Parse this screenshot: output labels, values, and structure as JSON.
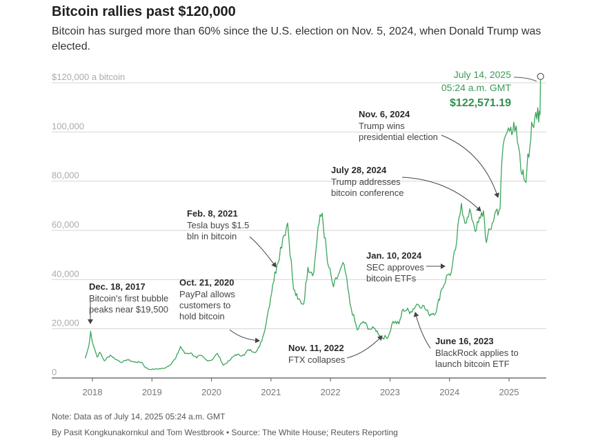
{
  "header": {
    "title": "Bitcoin rallies past $120,000",
    "subtitle": "Bitcoin has surged more than 60% since the U.S. election on Nov. 5, 2024, when Donald Trump was elected."
  },
  "footer": {
    "note": "Note: Data as of July 14, 2025 05:24 a.m. GMT",
    "source": "By Pasit Kongkunakornkul and Tom Westbrook • Source: The White House; Reuters Reporting"
  },
  "colors": {
    "line": "#3aa45b",
    "grid": "#d6d6d6",
    "axis": "#555555",
    "accent": "#2f8f4e"
  },
  "chart_data": {
    "type": "line",
    "title": "Bitcoin rallies past $120,000",
    "ylabel": "$ a bitcoin",
    "ylim": [
      0,
      120000
    ],
    "xlim": [
      2017.75,
      2025.67
    ],
    "y_ticks": [
      {
        "value": 0,
        "label": "0"
      },
      {
        "value": 20000,
        "label": "20,000"
      },
      {
        "value": 40000,
        "label": "40,000"
      },
      {
        "value": 60000,
        "label": "60,000"
      },
      {
        "value": 80000,
        "label": "80,000"
      },
      {
        "value": 100000,
        "label": "100,000"
      },
      {
        "value": 120000,
        "label": "$120,000 a bitcoin"
      }
    ],
    "x_ticks": [
      {
        "value": 2018,
        "label": "2018"
      },
      {
        "value": 2019,
        "label": "2019"
      },
      {
        "value": 2020,
        "label": "2020"
      },
      {
        "value": 2021,
        "label": "2021"
      },
      {
        "value": 2022,
        "label": "2022"
      },
      {
        "value": 2023,
        "label": "2023"
      },
      {
        "value": 2024,
        "label": "2024"
      },
      {
        "value": 2025,
        "label": "2025"
      }
    ],
    "series": [
      {
        "name": "Bitcoin price (USD)",
        "points": [
          [
            2017.88,
            8000
          ],
          [
            2017.94,
            13000
          ],
          [
            2017.97,
            19000
          ],
          [
            2018.0,
            14500
          ],
          [
            2018.04,
            11500
          ],
          [
            2018.08,
            8500
          ],
          [
            2018.12,
            10500
          ],
          [
            2018.2,
            7000
          ],
          [
            2018.3,
            9300
          ],
          [
            2018.4,
            7500
          ],
          [
            2018.5,
            6300
          ],
          [
            2018.58,
            7500
          ],
          [
            2018.7,
            6500
          ],
          [
            2018.83,
            6400
          ],
          [
            2018.88,
            4500
          ],
          [
            2018.95,
            3500
          ],
          [
            2019.05,
            3600
          ],
          [
            2019.2,
            3900
          ],
          [
            2019.3,
            5200
          ],
          [
            2019.4,
            8000
          ],
          [
            2019.48,
            12800
          ],
          [
            2019.55,
            10000
          ],
          [
            2019.65,
            10200
          ],
          [
            2019.75,
            8200
          ],
          [
            2019.82,
            9200
          ],
          [
            2019.92,
            7200
          ],
          [
            2020.0,
            7200
          ],
          [
            2020.1,
            10000
          ],
          [
            2020.2,
            5200
          ],
          [
            2020.3,
            7000
          ],
          [
            2020.4,
            9500
          ],
          [
            2020.55,
            9200
          ],
          [
            2020.62,
            11500
          ],
          [
            2020.75,
            10600
          ],
          [
            2020.81,
            12800
          ],
          [
            2020.88,
            18000
          ],
          [
            2020.96,
            28000
          ],
          [
            2021.03,
            38000
          ],
          [
            2021.1,
            46000
          ],
          [
            2021.2,
            57000
          ],
          [
            2021.28,
            63000
          ],
          [
            2021.38,
            36000
          ],
          [
            2021.45,
            32000
          ],
          [
            2021.55,
            30000
          ],
          [
            2021.62,
            45000
          ],
          [
            2021.72,
            43000
          ],
          [
            2021.79,
            61000
          ],
          [
            2021.86,
            67000
          ],
          [
            2021.95,
            47000
          ],
          [
            2022.05,
            37000
          ],
          [
            2022.15,
            43000
          ],
          [
            2022.23,
            46000
          ],
          [
            2022.33,
            30000
          ],
          [
            2022.45,
            19500
          ],
          [
            2022.55,
            23000
          ],
          [
            2022.65,
            20000
          ],
          [
            2022.75,
            20000
          ],
          [
            2022.86,
            16500
          ],
          [
            2022.97,
            16700
          ],
          [
            2023.05,
            23000
          ],
          [
            2023.15,
            22000
          ],
          [
            2023.22,
            28000
          ],
          [
            2023.35,
            27000
          ],
          [
            2023.45,
            30000
          ],
          [
            2023.55,
            29500
          ],
          [
            2023.65,
            26000
          ],
          [
            2023.78,
            27000
          ],
          [
            2023.85,
            35000
          ],
          [
            2023.97,
            42000
          ],
          [
            2024.03,
            43000
          ],
          [
            2024.1,
            52000
          ],
          [
            2024.2,
            71000
          ],
          [
            2024.28,
            63000
          ],
          [
            2024.36,
            67000
          ],
          [
            2024.45,
            60000
          ],
          [
            2024.52,
            65000
          ],
          [
            2024.57,
            68000
          ],
          [
            2024.62,
            55000
          ],
          [
            2024.72,
            63000
          ],
          [
            2024.78,
            68000
          ],
          [
            2024.85,
            69000
          ],
          [
            2024.88,
            88000
          ],
          [
            2024.92,
            97000
          ],
          [
            2024.97,
            100000
          ],
          [
            2025.03,
            102000
          ],
          [
            2025.08,
            104000
          ],
          [
            2025.14,
            96000
          ],
          [
            2025.2,
            84000
          ],
          [
            2025.27,
            80000
          ],
          [
            2025.3,
            85000
          ],
          [
            2025.35,
            94000
          ],
          [
            2025.38,
            104000
          ],
          [
            2025.45,
            108000
          ],
          [
            2025.5,
            104000
          ],
          [
            2025.52,
            107000
          ],
          [
            2025.5301,
            122571.19
          ]
        ]
      }
    ],
    "peak": {
      "x": 2025.5301,
      "y": 122571.19,
      "date_label": "July 14, 2025",
      "time_label": "05:24 a.m. GMT",
      "value_label": "$122,571.19"
    },
    "annotations": [
      {
        "x": 2017.96,
        "y": 19500,
        "date": "Dec. 18, 2017",
        "lines": [
          "Bitcoin's first bubble",
          "peaks near $19,500"
        ]
      },
      {
        "x": 2020.81,
        "y": 13000,
        "date": "Oct. 21, 2020",
        "lines": [
          "PayPal allows",
          "customers to",
          "hold bitcoin"
        ]
      },
      {
        "x": 2021.11,
        "y": 46000,
        "date": "Feb. 8, 2021",
        "lines": [
          "Tesla buys $1.5",
          "bln in bitcoin"
        ]
      },
      {
        "x": 2022.86,
        "y": 17000,
        "date": "Nov. 11, 2022",
        "lines": [
          "FTX collapses"
        ]
      },
      {
        "x": 2023.46,
        "y": 26000,
        "date": "June 16, 2023",
        "lines": [
          "BlackRock applies to",
          "launch bitcoin ETF"
        ]
      },
      {
        "x": 2024.03,
        "y": 46500,
        "date": "Jan. 10, 2024",
        "lines": [
          "SEC approves",
          "bitcoin ETFs"
        ]
      },
      {
        "x": 2024.57,
        "y": 67000,
        "date": "July 28, 2024",
        "lines": [
          "Trump addresses",
          "bitcoin conference"
        ]
      },
      {
        "x": 2024.85,
        "y": 75000,
        "date": "Nov. 6, 2024",
        "lines": [
          "Trump wins",
          "presidential election"
        ]
      }
    ]
  }
}
